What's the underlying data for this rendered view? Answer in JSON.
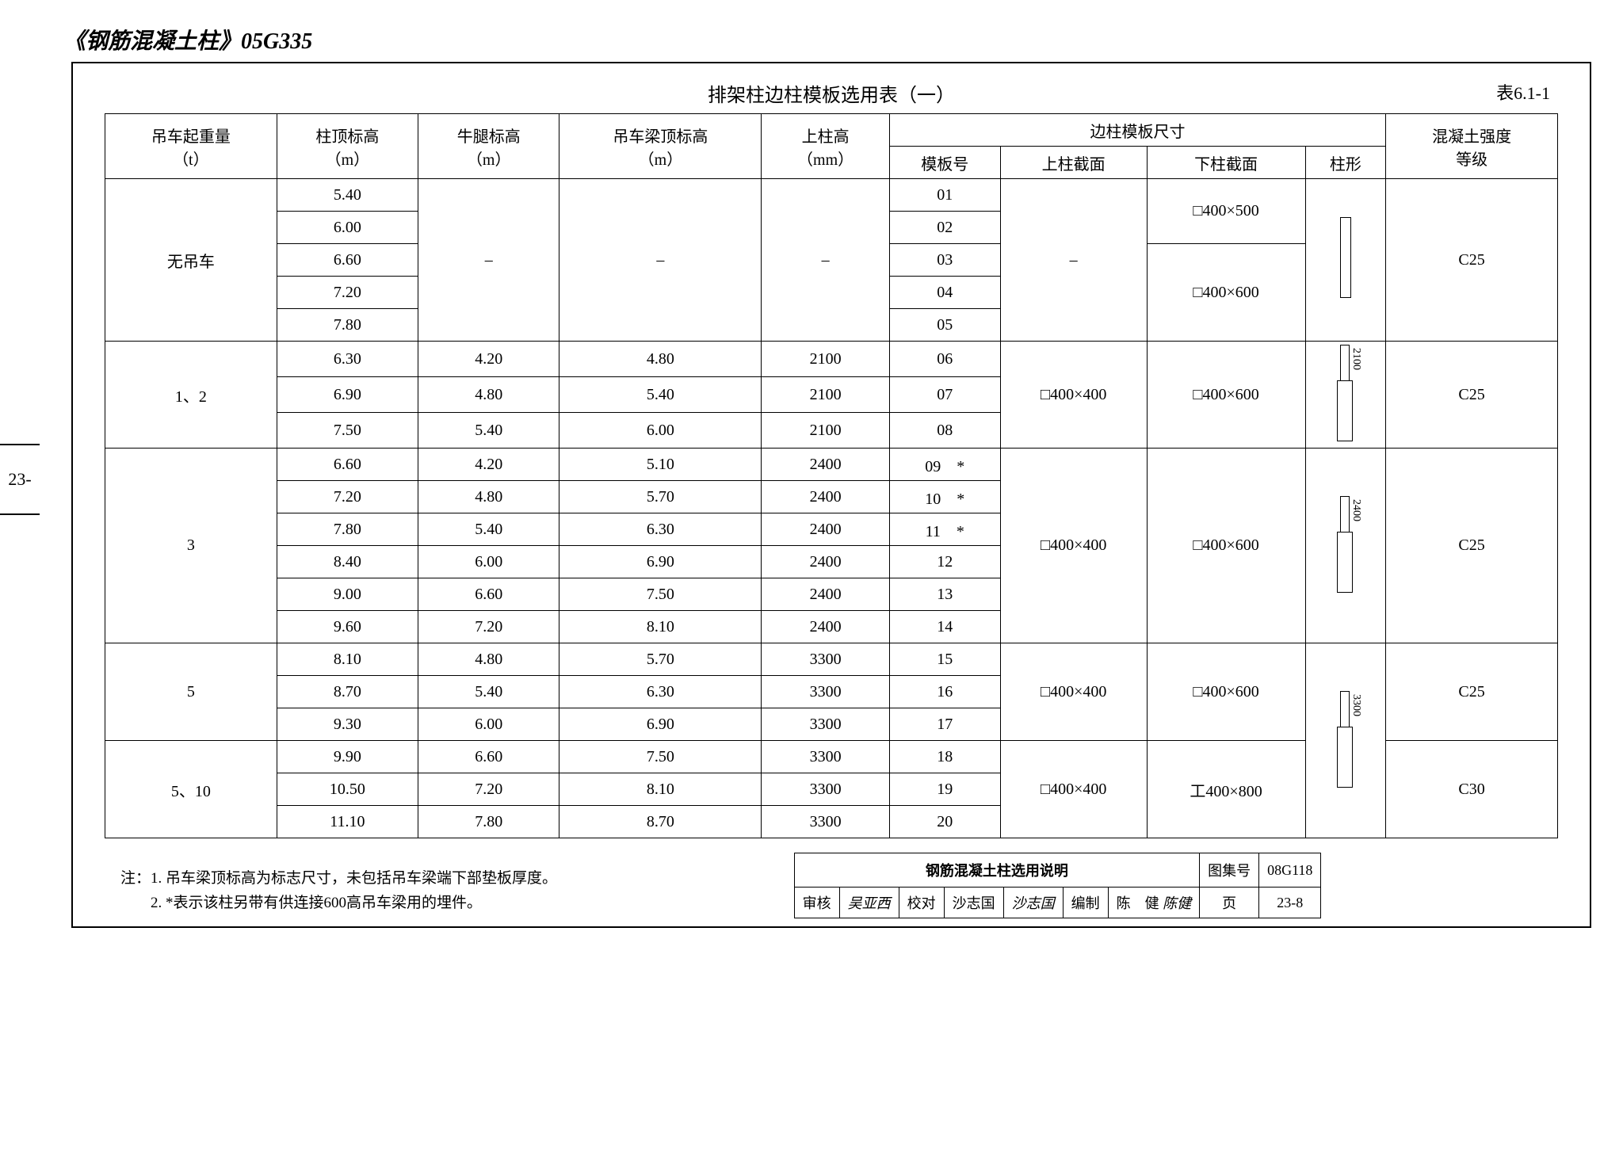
{
  "doc_title": "《钢筋混凝土柱》05G335",
  "side_tab": "23-",
  "table_title": "排架柱边柱模板选用表（一）",
  "table_number": "表6.1-1",
  "headers": {
    "h1": "吊车起重量",
    "h1u": "（t）",
    "h2": "柱顶标高",
    "h2u": "（m）",
    "h3": "牛腿标高",
    "h3u": "（m）",
    "h4": "吊车梁顶标高",
    "h4u": "（m）",
    "h5": "上柱高",
    "h5u": "（mm）",
    "g6": "边柱模板尺寸",
    "h6a": "模板号",
    "h6b": "上柱截面",
    "h6c": "下柱截面",
    "h6d": "柱形",
    "h7": "混凝土强度",
    "h7u": "等级"
  },
  "groups": [
    {
      "crane": "无吊车",
      "rows": [
        {
          "c2": "5.40",
          "c3": "",
          "c4": "",
          "c5": "",
          "c6": "01"
        },
        {
          "c2": "6.00",
          "c3": "",
          "c4": "",
          "c5": "",
          "c6": "02"
        },
        {
          "c2": "6.60",
          "c3": "",
          "c4": "",
          "c5": "",
          "c6": "03"
        },
        {
          "c2": "7.20",
          "c3": "",
          "c4": "",
          "c5": "",
          "c6": "04"
        },
        {
          "c2": "7.80",
          "c3": "",
          "c4": "",
          "c5": "",
          "c6": "05"
        }
      ],
      "c3span": "–",
      "c4span": "–",
      "c5span": "–",
      "upper": "–",
      "lowers": [
        "□400×500",
        "□400×600"
      ],
      "lower_splits": [
        2,
        3
      ],
      "shape": "plain",
      "shape_dim": "",
      "grade": "C25"
    },
    {
      "crane": "1、2",
      "rows": [
        {
          "c2": "6.30",
          "c3": "4.20",
          "c4": "4.80",
          "c5": "2100",
          "c6": "06"
        },
        {
          "c2": "6.90",
          "c3": "4.80",
          "c4": "5.40",
          "c5": "2100",
          "c6": "07"
        },
        {
          "c2": "7.50",
          "c3": "5.40",
          "c4": "6.00",
          "c5": "2100",
          "c6": "08"
        }
      ],
      "upper": "□400×400",
      "lowers": [
        "□400×600"
      ],
      "lower_splits": [
        3
      ],
      "shape": "step",
      "shape_dim": "2100",
      "grade": "C25"
    },
    {
      "crane": "3",
      "rows": [
        {
          "c2": "6.60",
          "c3": "4.20",
          "c4": "5.10",
          "c5": "2400",
          "c6": "09　*"
        },
        {
          "c2": "7.20",
          "c3": "4.80",
          "c4": "5.70",
          "c5": "2400",
          "c6": "10　*"
        },
        {
          "c2": "7.80",
          "c3": "5.40",
          "c4": "6.30",
          "c5": "2400",
          "c6": "11　*"
        },
        {
          "c2": "8.40",
          "c3": "6.00",
          "c4": "6.90",
          "c5": "2400",
          "c6": "12"
        },
        {
          "c2": "9.00",
          "c3": "6.60",
          "c4": "7.50",
          "c5": "2400",
          "c6": "13"
        },
        {
          "c2": "9.60",
          "c3": "7.20",
          "c4": "8.10",
          "c5": "2400",
          "c6": "14"
        }
      ],
      "upper": "□400×400",
      "lowers": [
        "□400×600"
      ],
      "lower_splits": [
        6
      ],
      "shape": "step",
      "shape_dim": "2400",
      "grade": "C25"
    },
    {
      "crane": "5",
      "rows": [
        {
          "c2": "8.10",
          "c3": "4.80",
          "c4": "5.70",
          "c5": "3300",
          "c6": "15"
        },
        {
          "c2": "8.70",
          "c3": "5.40",
          "c4": "6.30",
          "c5": "3300",
          "c6": "16"
        },
        {
          "c2": "9.30",
          "c3": "6.00",
          "c4": "6.90",
          "c5": "3300",
          "c6": "17"
        }
      ],
      "upper": "□400×400",
      "lowers": [
        "□400×600"
      ],
      "lower_splits": [
        3
      ],
      "shape": "step_shared",
      "shape_dim": "3300",
      "grade": "C25",
      "share_shape_rows": 6
    },
    {
      "crane": "5、10",
      "rows": [
        {
          "c2": "9.90",
          "c3": "6.60",
          "c4": "7.50",
          "c5": "3300",
          "c6": "18"
        },
        {
          "c2": "10.50",
          "c3": "7.20",
          "c4": "8.10",
          "c5": "3300",
          "c6": "19"
        },
        {
          "c2": "11.10",
          "c3": "7.80",
          "c4": "8.70",
          "c5": "3300",
          "c6": "20"
        }
      ],
      "upper": "□400×400",
      "lowers": [
        "工400×800"
      ],
      "lower_splits": [
        3
      ],
      "shape": "none",
      "grade": "C30"
    }
  ],
  "notes": {
    "n1": "注：1. 吊车梁顶标高为标志尺寸，未包括吊车梁端下部垫板厚度。",
    "n2": "　　2. *表示该柱另带有供连接600高吊车梁用的埋件。"
  },
  "titleblock": {
    "main": "钢筋混凝土柱选用说明",
    "set_label": "图集号",
    "set_no": "08G118",
    "review": "审核",
    "review_sig": "吴亚西",
    "check": "校对",
    "check_name": "沙志国",
    "check_sig": "沙志国",
    "draft": "编制",
    "draft_name": "陈　健",
    "draft_sig": "陈健",
    "page_label": "页",
    "page_no": "23-8"
  }
}
